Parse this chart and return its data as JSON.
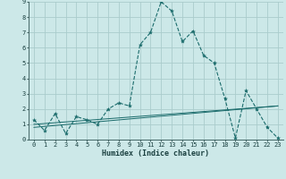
{
  "xlabel": "Humidex (Indice chaleur)",
  "xlim": [
    -0.5,
    23.5
  ],
  "ylim": [
    0,
    9
  ],
  "xticks": [
    0,
    1,
    2,
    3,
    4,
    5,
    6,
    7,
    8,
    9,
    10,
    11,
    12,
    13,
    14,
    15,
    16,
    17,
    18,
    19,
    20,
    21,
    22,
    23
  ],
  "yticks": [
    0,
    1,
    2,
    3,
    4,
    5,
    6,
    7,
    8,
    9
  ],
  "background_color": "#cce8e8",
  "grid_color": "#aacccc",
  "line_color": "#1a6b6b",
  "line1_x": [
    0,
    1,
    2,
    3,
    4,
    5,
    6,
    7,
    8,
    9,
    10,
    11,
    12,
    13,
    14,
    15,
    16,
    17,
    18,
    19,
    20,
    21,
    22,
    23
  ],
  "line1_y": [
    1.3,
    0.6,
    1.7,
    0.4,
    1.5,
    1.3,
    1.0,
    2.0,
    2.4,
    2.2,
    6.2,
    7.0,
    9.0,
    8.4,
    6.4,
    7.1,
    5.5,
    5.0,
    2.7,
    0.1,
    3.2,
    2.0,
    0.8,
    0.1
  ],
  "line2_x": [
    0,
    23
  ],
  "line2_y": [
    0.0,
    0.0
  ],
  "line3_x": [
    0,
    23
  ],
  "line3_y": [
    1.0,
    2.2
  ],
  "line4_x": [
    0,
    23
  ],
  "line4_y": [
    0.8,
    2.2
  ],
  "xlabel_fontsize": 6,
  "tick_fontsize": 5
}
